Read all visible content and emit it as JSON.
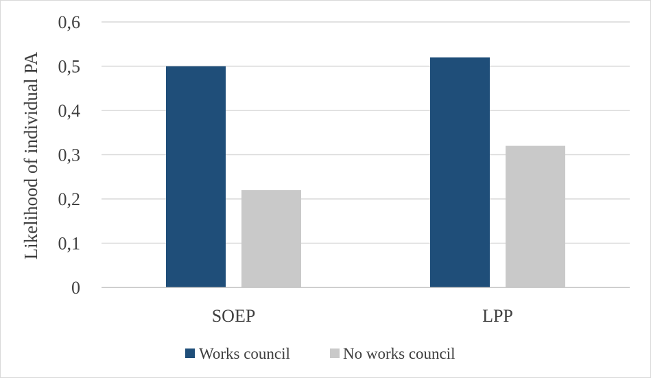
{
  "chart_data": {
    "type": "bar",
    "title": "",
    "xlabel": "",
    "ylabel": "Likelihood of individual PA",
    "ylim": [
      0,
      0.6
    ],
    "yticks": [
      0,
      0.1,
      0.2,
      0.3,
      0.4,
      0.5,
      0.6
    ],
    "ytick_labels": [
      "0",
      "0,1",
      "0,2",
      "0,3",
      "0,4",
      "0,5",
      "0,6"
    ],
    "categories": [
      "SOEP",
      "LPP"
    ],
    "series": [
      {
        "name": "Works council",
        "values": [
          0.5,
          0.52
        ],
        "color": "#1f4e79"
      },
      {
        "name": "No works council",
        "values": [
          0.22,
          0.32
        ],
        "color": "#c9c9c9"
      }
    ],
    "grid": true,
    "legend": "bottom"
  }
}
